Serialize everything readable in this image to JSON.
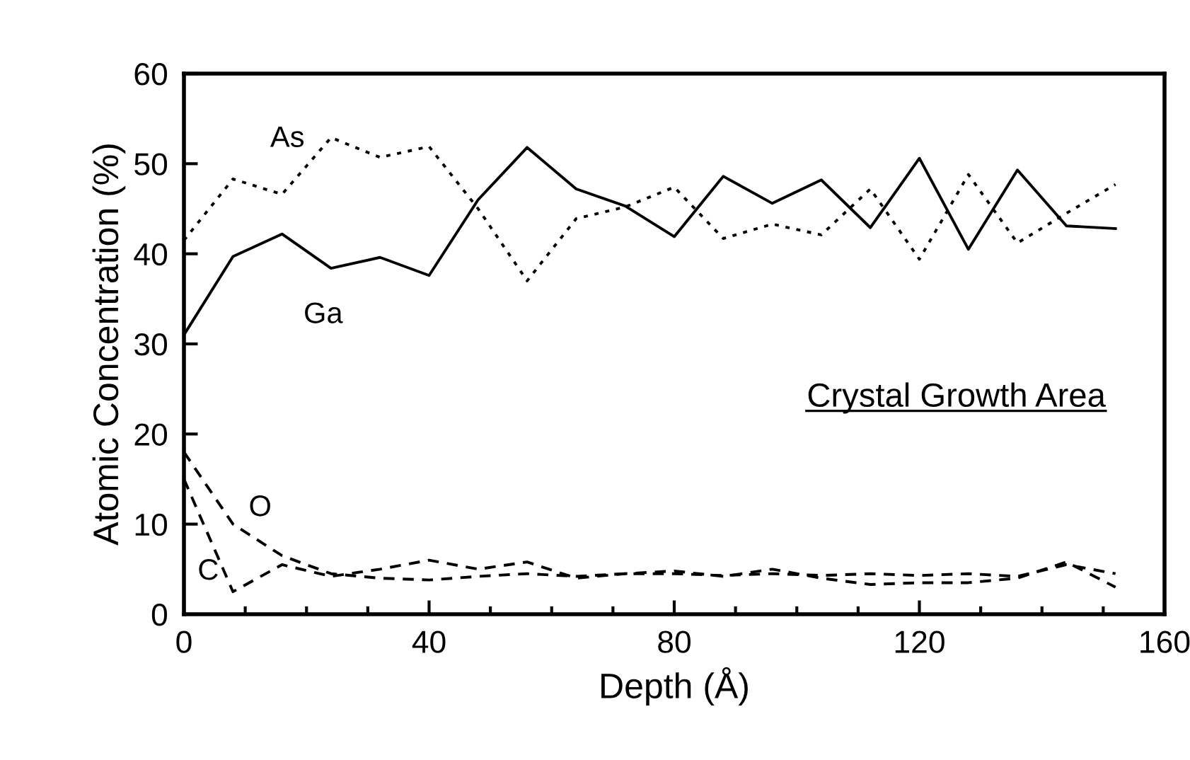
{
  "chart_data": {
    "type": "line",
    "xlabel": "Depth (Å)",
    "ylabel": "Atomic Concentration (%)",
    "x": [
      0,
      8,
      16,
      24,
      32,
      40,
      48,
      56,
      64,
      72,
      80,
      88,
      96,
      104,
      112,
      120,
      128,
      136,
      144,
      152
    ],
    "series": [
      {
        "name": "As",
        "color": "#000000",
        "line_style": "dotted",
        "values": [
          41.5,
          48.3,
          46.6,
          52.9,
          50.7,
          51.9,
          45,
          37,
          43.9,
          45.2,
          47.4,
          41.7,
          43.3,
          42.1,
          47.2,
          39.4,
          48.8,
          41.2,
          44.5,
          47.7
        ]
      },
      {
        "name": "Ga",
        "color": "#000000",
        "line_style": "solid",
        "values": [
          31,
          39.7,
          42.2,
          38.4,
          39.6,
          37.6,
          46,
          51.8,
          47.2,
          45.3,
          41.9,
          48.6,
          45.6,
          48.2,
          42.9,
          50.6,
          40.5,
          49.3,
          43.1,
          42.8
        ]
      },
      {
        "name": "O",
        "color": "#000000",
        "line_style": "dashed",
        "values": [
          18,
          10,
          6.5,
          4.5,
          4,
          3.8,
          4.2,
          4.5,
          4.2,
          4.5,
          4.5,
          4.3,
          4.5,
          4.3,
          4.5,
          4.3,
          4.5,
          4.2,
          5.5,
          4.5
        ]
      },
      {
        "name": "C",
        "color": "#000000",
        "line_style": "dashed",
        "values": [
          15,
          2.5,
          5.5,
          4.2,
          5,
          6,
          5,
          5.8,
          4,
          4.5,
          4.8,
          4.2,
          5,
          4,
          3.3,
          3.5,
          3.5,
          4,
          5.8,
          3
        ]
      }
    ],
    "xlim": [
      0,
      160
    ],
    "ylim": [
      0,
      60
    ],
    "xticks": [
      0,
      {
        "value": 10,
        "label": null
      },
      {
        "value": 20,
        "label": null
      },
      {
        "value": 30,
        "label": null
      },
      40,
      {
        "value": 50,
        "label": null
      },
      {
        "value": 60,
        "label": null
      },
      {
        "value": 70,
        "label": null
      },
      80,
      {
        "value": 90,
        "label": null
      },
      {
        "value": 100,
        "label": null
      },
      {
        "value": 110,
        "label": null
      },
      120,
      {
        "value": 130,
        "label": null
      },
      {
        "value": 140,
        "label": null
      },
      {
        "value": 150,
        "label": null
      },
      160
    ],
    "yticks": [
      0,
      10,
      20,
      30,
      40,
      50,
      60
    ],
    "annotations": [
      "Crystal Growth Area"
    ],
    "grid": false,
    "legend": false
  }
}
